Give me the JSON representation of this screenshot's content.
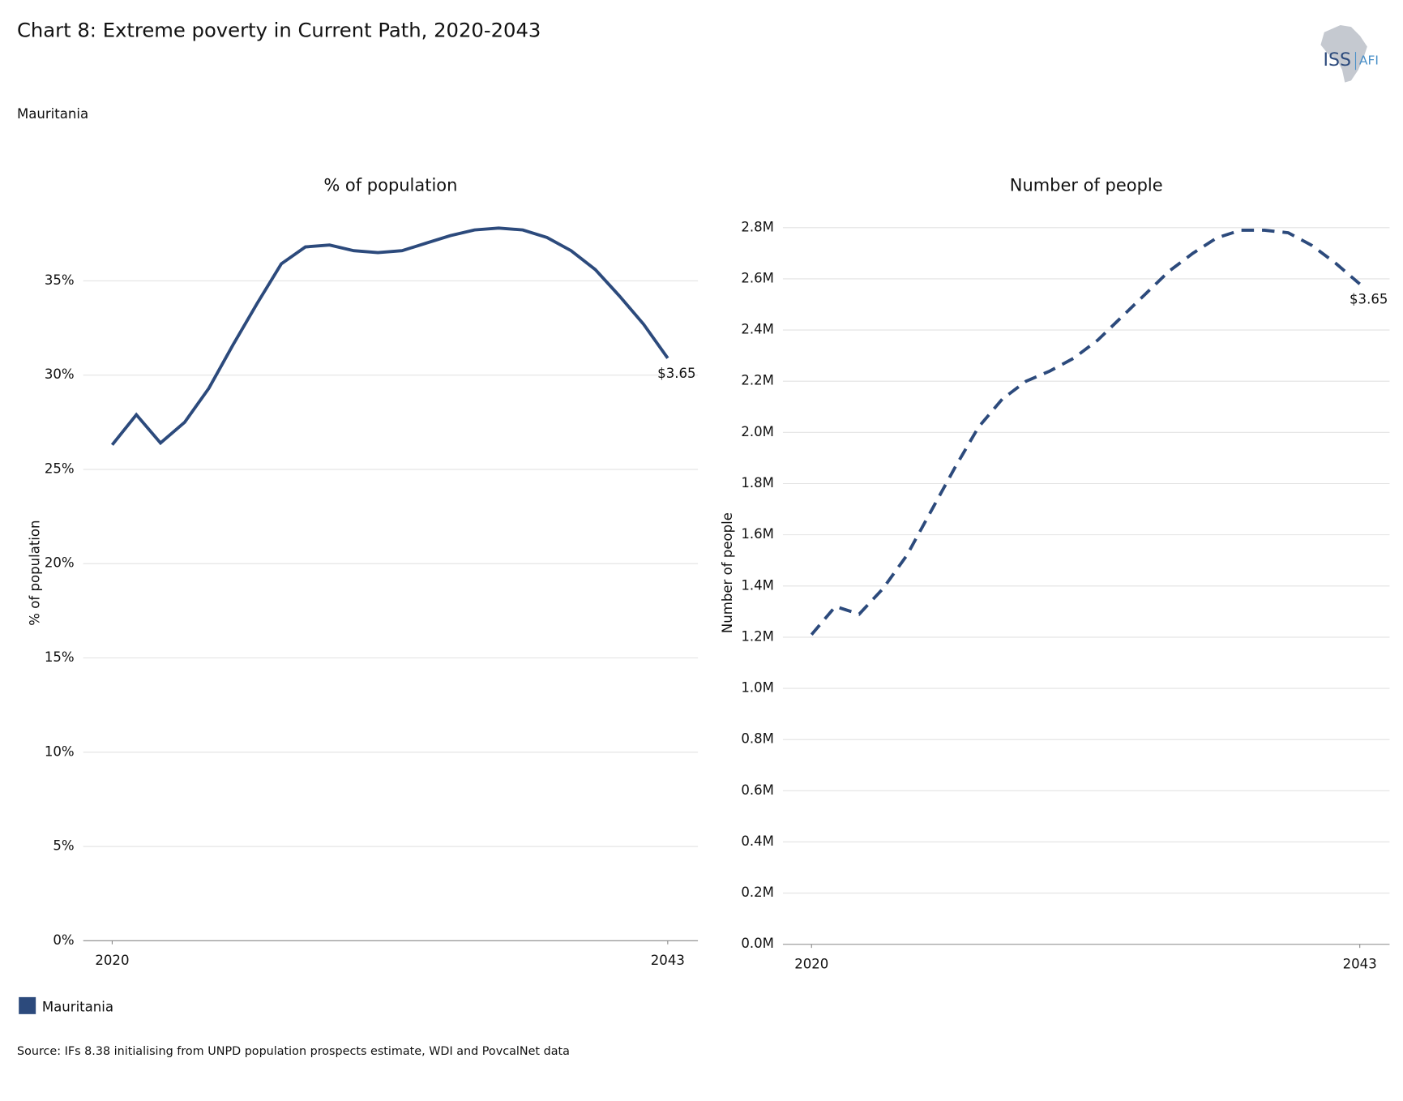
{
  "title": "Chart 8: Extreme poverty in Current Path, 2020-2043",
  "subtitle": "Mauritania",
  "source": "Source: IFs 8.38 initialising from UNPD population prospects estimate, WDI and PovcalNet data",
  "logo": {
    "left": "ISS",
    "right": "AFI"
  },
  "chart_data": [
    {
      "type": "line",
      "title": "% of population",
      "ylabel": "% of population",
      "x": [
        2020,
        2021,
        2022,
        2023,
        2024,
        2025,
        2026,
        2027,
        2028,
        2029,
        2030,
        2031,
        2032,
        2033,
        2034,
        2035,
        2036,
        2037,
        2038,
        2039,
        2040,
        2041,
        2042,
        2043
      ],
      "xlim": [
        2018.8,
        2044.25
      ],
      "xticks": [
        2020,
        2043
      ],
      "ylim": [
        0,
        38.5
      ],
      "yticks": [
        {
          "value": 0,
          "label": "0%"
        },
        {
          "value": 5,
          "label": "5%"
        },
        {
          "value": 10,
          "label": "10%"
        },
        {
          "value": 15,
          "label": "15%"
        },
        {
          "value": 20,
          "label": "20%"
        },
        {
          "value": 25,
          "label": "25%"
        },
        {
          "value": 30,
          "label": "30%"
        },
        {
          "value": 35,
          "label": "35%"
        }
      ],
      "grid": true,
      "line_style": "solid",
      "end_label": "$3.65",
      "series": [
        {
          "name": "Mauritania",
          "color": "#2c4a7c",
          "values": [
            26.3,
            27.9,
            26.4,
            27.5,
            29.3,
            31.6,
            33.8,
            35.9,
            36.8,
            36.9,
            36.6,
            36.5,
            36.6,
            37.0,
            37.4,
            37.7,
            37.8,
            37.7,
            37.3,
            36.6,
            35.6,
            34.2,
            32.7,
            30.9
          ]
        }
      ]
    },
    {
      "type": "line",
      "title": "Number of people",
      "ylabel": "Number of people",
      "x": [
        2020,
        2021,
        2022,
        2023,
        2024,
        2025,
        2026,
        2027,
        2028,
        2029,
        2030,
        2031,
        2032,
        2033,
        2034,
        2035,
        2036,
        2037,
        2038,
        2039,
        2040,
        2041,
        2042,
        2043
      ],
      "xlim": [
        2018.8,
        2044.25
      ],
      "xticks": [
        2020,
        2043
      ],
      "ylim": [
        0,
        2850000
      ],
      "yticks": [
        {
          "value": 0,
          "label": "0.0M"
        },
        {
          "value": 200000,
          "label": "0.2M"
        },
        {
          "value": 400000,
          "label": "0.4M"
        },
        {
          "value": 600000,
          "label": "0.6M"
        },
        {
          "value": 800000,
          "label": "0.8M"
        },
        {
          "value": 1000000,
          "label": "1.0M"
        },
        {
          "value": 1200000,
          "label": "1.2M"
        },
        {
          "value": 1400000,
          "label": "1.4M"
        },
        {
          "value": 1600000,
          "label": "1.6M"
        },
        {
          "value": 1800000,
          "label": "1.8M"
        },
        {
          "value": 2000000,
          "label": "2.0M"
        },
        {
          "value": 2200000,
          "label": "2.2M"
        },
        {
          "value": 2400000,
          "label": "2.4M"
        },
        {
          "value": 2600000,
          "label": "2.6M"
        },
        {
          "value": 2800000,
          "label": "2.8M"
        }
      ],
      "grid": true,
      "line_style": "dashed",
      "end_label": "$3.65",
      "series": [
        {
          "color": "#2c4a7c",
          "values": [
            1210000,
            1320000,
            1290000,
            1390000,
            1520000,
            1690000,
            1860000,
            2020000,
            2130000,
            2200000,
            2240000,
            2290000,
            2360000,
            2450000,
            2540000,
            2630000,
            2700000,
            2760000,
            2790000,
            2790000,
            2780000,
            2730000,
            2660000,
            2580000
          ]
        }
      ]
    }
  ]
}
